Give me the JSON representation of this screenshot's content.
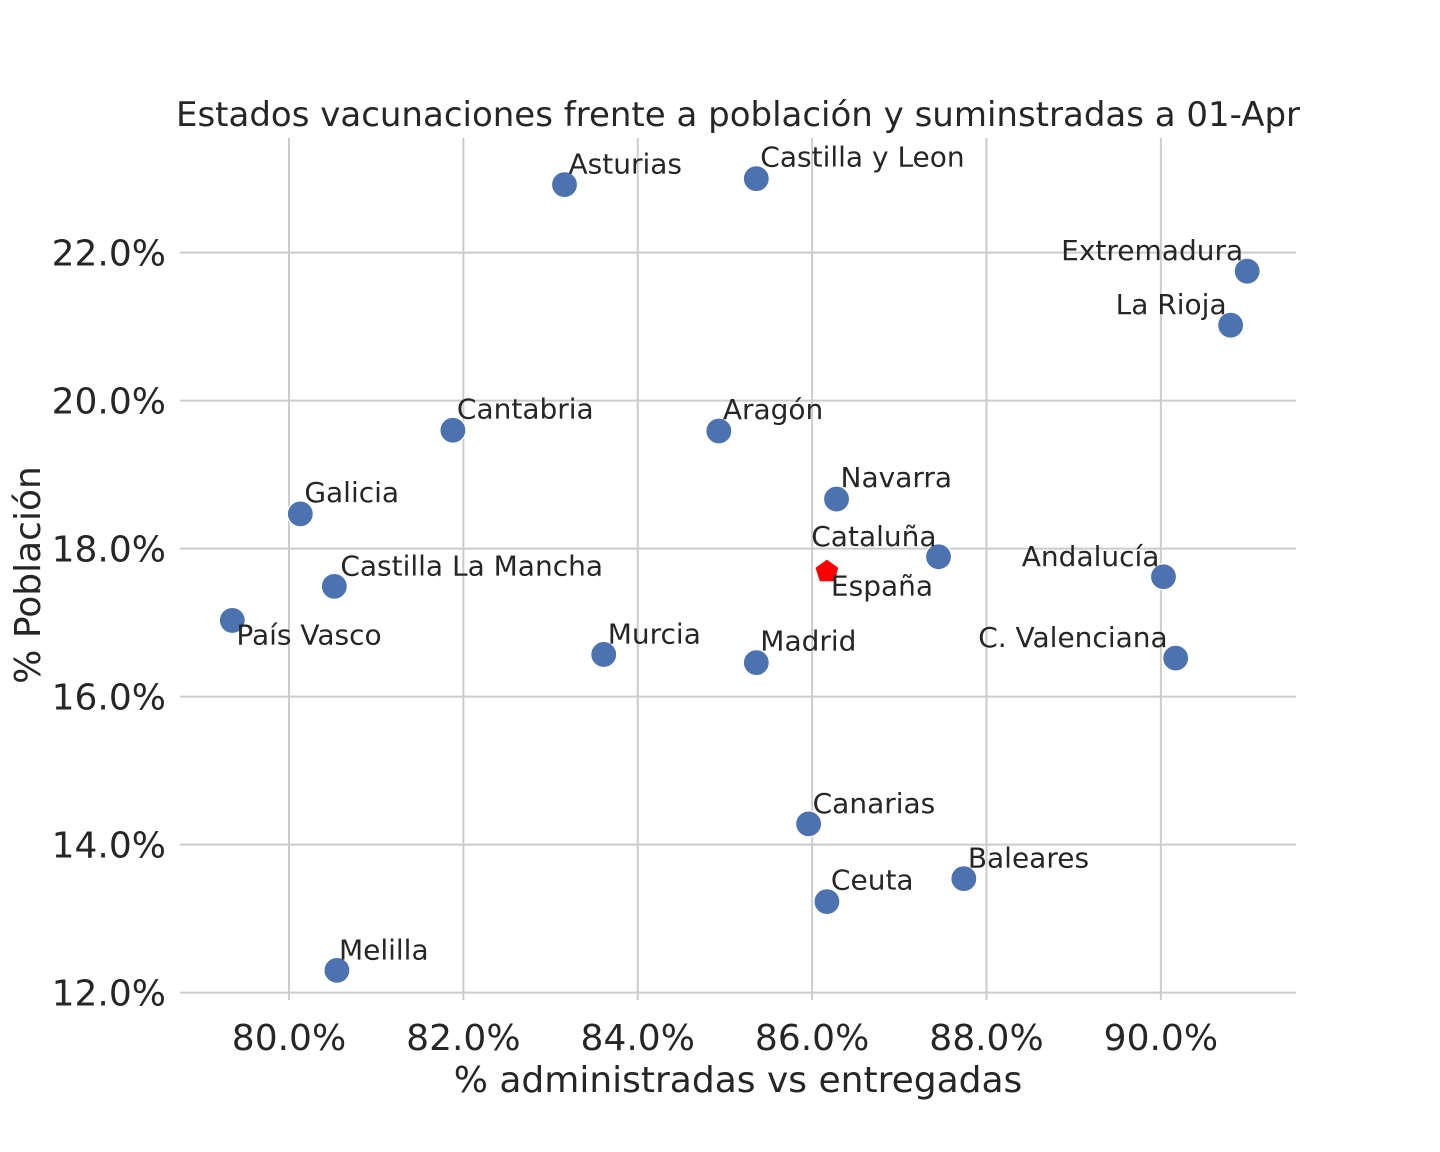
{
  "chart_data": {
    "type": "scatter",
    "title": "Estados vacunaciones frente a población y suminstradas a 01-Apr",
    "xlabel": "% administradas vs entregadas",
    "ylabel": "% Población",
    "xlim": [
      0.7875,
      0.9155
    ],
    "ylim": [
      0.119,
      0.2355
    ],
    "x_ticks": [
      0.8,
      0.82,
      0.84,
      0.86,
      0.88,
      0.9
    ],
    "x_tick_labels": [
      "80.0%",
      "82.0%",
      "84.0%",
      "86.0%",
      "88.0%",
      "90.0%"
    ],
    "y_ticks": [
      0.12,
      0.14,
      0.16,
      0.18,
      0.2,
      0.22
    ],
    "y_tick_labels": [
      "12.0%",
      "14.0%",
      "16.0%",
      "18.0%",
      "20.0%",
      "22.0%"
    ],
    "grid": true,
    "series": [
      {
        "marker": "circle",
        "color": "#4c72b0",
        "points": [
          {
            "label": "Asturias",
            "x": 0.8316,
            "y": 0.2292
          },
          {
            "label": "Castilla y Leon",
            "x": 0.8536,
            "y": 0.23
          },
          {
            "label": "Extremadura",
            "x": 0.9099,
            "y": 0.2175
          },
          {
            "label": "La Rioja",
            "x": 0.908,
            "y": 0.2102
          },
          {
            "label": "Cantabria",
            "x": 0.8188,
            "y": 0.196
          },
          {
            "label": "Aragón",
            "x": 0.8493,
            "y": 0.1959
          },
          {
            "label": "Navarra",
            "x": 0.8628,
            "y": 0.1867
          },
          {
            "label": "Galicia",
            "x": 0.8013,
            "y": 0.1847
          },
          {
            "label": "Cataluña",
            "x": 0.8745,
            "y": 0.1789
          },
          {
            "label": "Andalucía",
            "x": 0.9003,
            "y": 0.1762
          },
          {
            "label": "Castilla La Mancha",
            "x": 0.8052,
            "y": 0.1749
          },
          {
            "label": "País Vasco",
            "x": 0.7935,
            "y": 0.1703
          },
          {
            "label": "Murcia",
            "x": 0.8361,
            "y": 0.1657
          },
          {
            "label": "Madrid",
            "x": 0.8536,
            "y": 0.1646
          },
          {
            "label": "C. Valenciana",
            "x": 0.9017,
            "y": 0.1652
          },
          {
            "label": "Canarias",
            "x": 0.8596,
            "y": 0.1428
          },
          {
            "label": "Baleares",
            "x": 0.8774,
            "y": 0.1354
          },
          {
            "label": "Ceuta",
            "x": 0.8617,
            "y": 0.1323
          },
          {
            "label": "Melilla",
            "x": 0.8055,
            "y": 0.123
          }
        ]
      },
      {
        "marker": "pentagon",
        "color": "#ff0000",
        "points": [
          {
            "label": "España",
            "x": 0.8617,
            "y": 0.1769
          }
        ]
      }
    ]
  }
}
